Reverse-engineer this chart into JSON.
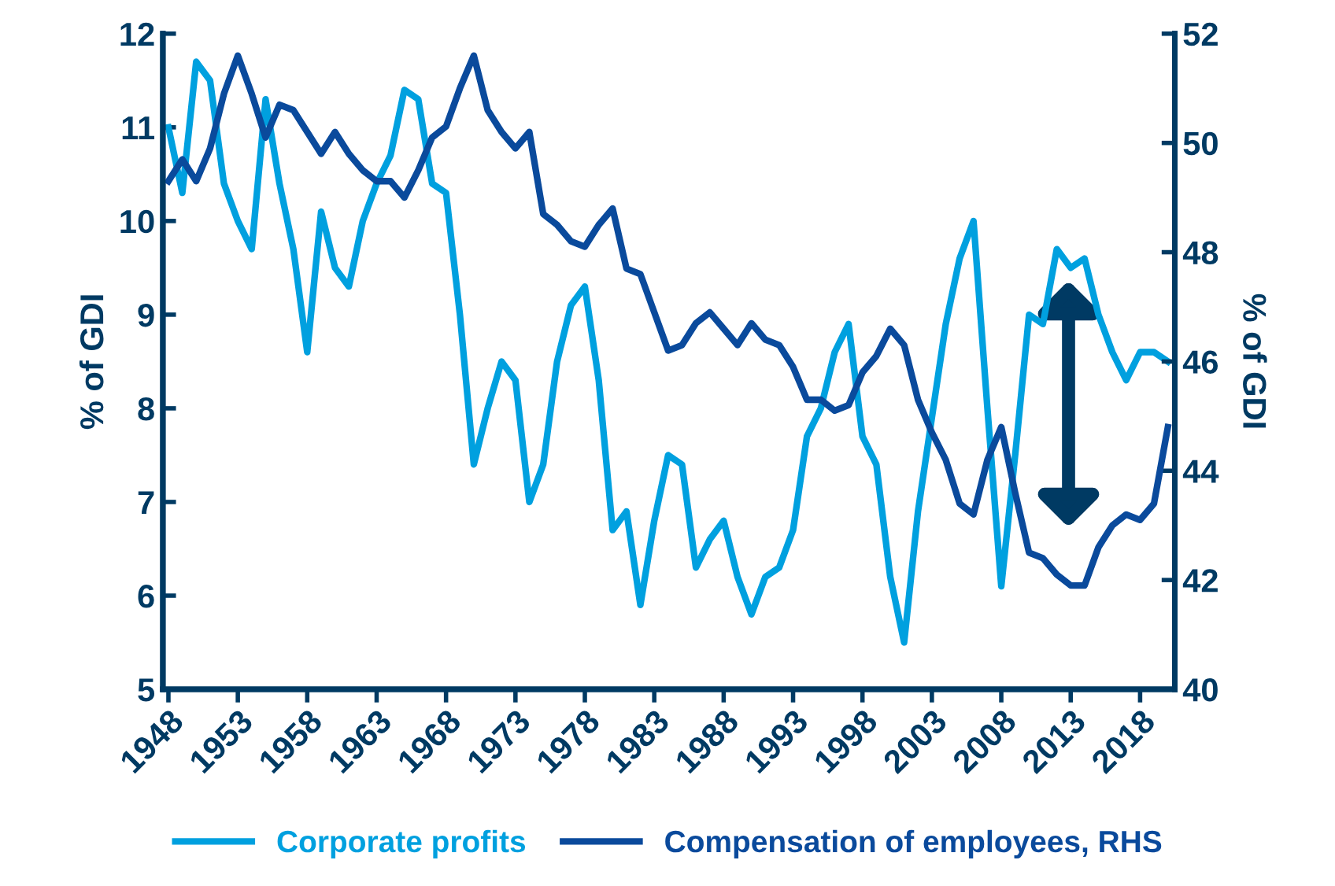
{
  "chart_data": {
    "type": "line",
    "ylabel": "% of GDI",
    "y2label": "% of GDI",
    "x": [
      1948,
      1949,
      1950,
      1951,
      1952,
      1953,
      1954,
      1955,
      1956,
      1957,
      1958,
      1959,
      1960,
      1961,
      1962,
      1963,
      1964,
      1965,
      1966,
      1967,
      1968,
      1969,
      1970,
      1971,
      1972,
      1973,
      1974,
      1975,
      1976,
      1977,
      1978,
      1979,
      1980,
      1981,
      1982,
      1983,
      1984,
      1985,
      1986,
      1987,
      1988,
      1989,
      1990,
      1991,
      1992,
      1993,
      1994,
      1995,
      1996,
      1997,
      1998,
      1999,
      2000,
      2001,
      2002,
      2003,
      2004,
      2005,
      2006,
      2007,
      2008,
      2009,
      2010,
      2011,
      2012,
      2013,
      2014,
      2015,
      2016,
      2017,
      2018,
      2019,
      2020
    ],
    "series": [
      {
        "name": "Corporate profits",
        "color": "#00a0df",
        "values": [
          11.0,
          10.3,
          11.7,
          11.5,
          10.4,
          10.0,
          9.7,
          11.3,
          10.4,
          9.7,
          8.6,
          10.1,
          9.5,
          9.3,
          10.0,
          10.4,
          10.7,
          11.4,
          11.3,
          10.4,
          10.3,
          9.0,
          7.4,
          8.0,
          8.5,
          8.3,
          7.0,
          7.4,
          8.5,
          9.1,
          9.3,
          8.3,
          6.7,
          6.9,
          5.9,
          6.8,
          7.5,
          7.4,
          6.3,
          6.6,
          6.8,
          6.2,
          5.8,
          6.2,
          6.3,
          6.7,
          7.7,
          8.0,
          8.6,
          8.9,
          7.7,
          7.4,
          6.2,
          5.5,
          6.9,
          7.9,
          8.9,
          9.6,
          10.0,
          8.0,
          6.1,
          7.5,
          9.0,
          8.9,
          9.7,
          9.5,
          9.6,
          9.0,
          8.6,
          8.3,
          8.6,
          8.6,
          8.5
        ]
      },
      {
        "name": "Compensation of employees, RHS",
        "color": "#0a4a9c",
        "axis": "y2",
        "values": [
          49.3,
          49.7,
          49.3,
          49.9,
          50.9,
          51.6,
          50.9,
          50.1,
          50.7,
          50.6,
          50.2,
          49.8,
          50.2,
          49.8,
          49.5,
          49.3,
          49.3,
          49.0,
          49.5,
          50.1,
          50.3,
          51.0,
          51.6,
          50.6,
          50.2,
          49.9,
          50.2,
          48.7,
          48.5,
          48.2,
          48.1,
          48.5,
          48.8,
          47.7,
          47.6,
          46.9,
          46.2,
          46.3,
          46.7,
          46.9,
          46.6,
          46.3,
          46.7,
          46.4,
          46.3,
          45.9,
          45.3,
          45.3,
          45.1,
          45.2,
          45.8,
          46.1,
          46.6,
          46.3,
          45.3,
          44.7,
          44.2,
          43.4,
          43.2,
          44.2,
          44.8,
          43.6,
          42.5,
          42.4,
          42.1,
          41.9,
          41.9,
          42.6,
          43.0,
          43.2,
          43.1,
          43.4,
          44.8
        ]
      }
    ],
    "xlim": [
      1947.6,
      2020.5
    ],
    "xticks": [
      1948,
      1953,
      1958,
      1963,
      1968,
      1973,
      1978,
      1983,
      1988,
      1993,
      1998,
      2003,
      2008,
      2013,
      2018
    ],
    "ylim": [
      5,
      12
    ],
    "yticks": [
      5,
      6,
      7,
      8,
      9,
      10,
      11,
      12
    ],
    "y2lim": [
      40,
      52
    ],
    "y2ticks": [
      40,
      42,
      44,
      46,
      48,
      50,
      52
    ],
    "grid": false,
    "legend": "bottom",
    "marker": "none",
    "line_style": "solid"
  }
}
